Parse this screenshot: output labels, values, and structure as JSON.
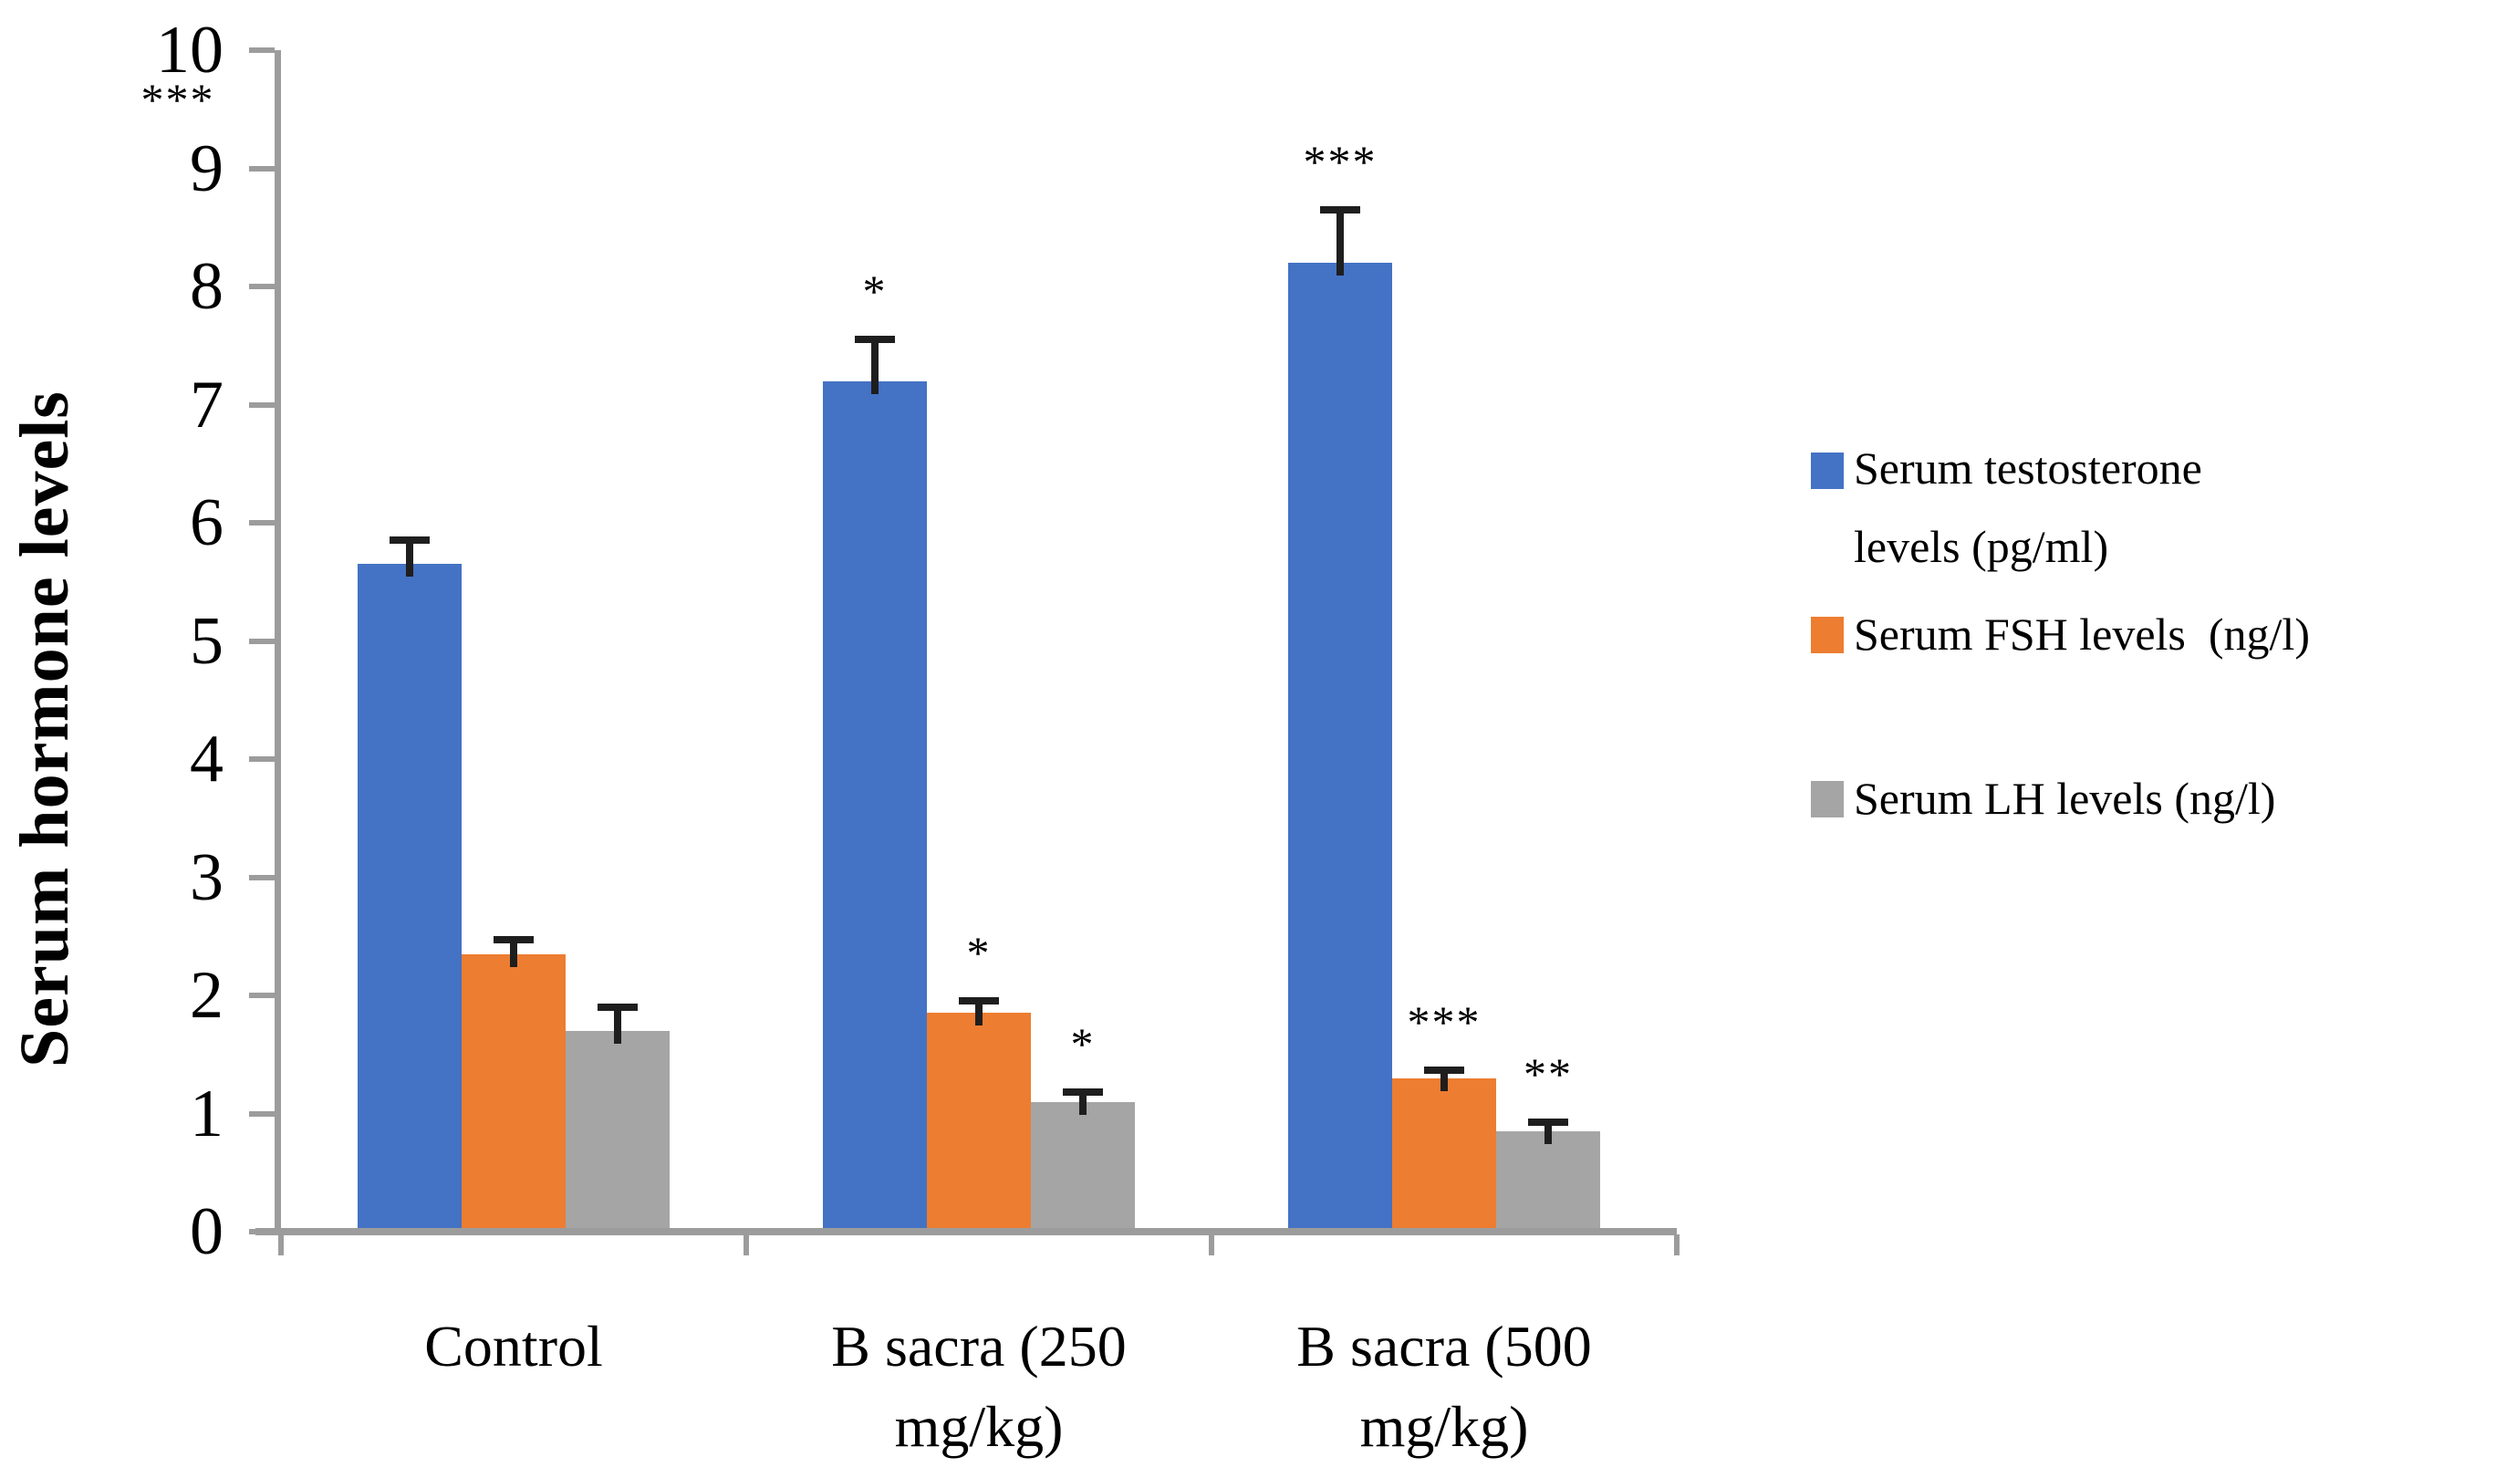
{
  "annotations": {
    "top_left_marks": "***"
  },
  "chart_data": {
    "type": "bar",
    "title": "",
    "xlabel": "",
    "ylabel": "Serum hormone levels",
    "ylim": [
      0,
      10
    ],
    "ytick_step": 1,
    "grid": false,
    "legend_position": "right",
    "categories": [
      "Control",
      "B sacra (250 mg/kg)",
      "B sacra (500 mg/kg)"
    ],
    "category_lines": [
      [
        "Control"
      ],
      [
        "B sacra (250",
        "mg/kg)"
      ],
      [
        "B sacra (500",
        "mg/kg)"
      ]
    ],
    "series": [
      {
        "name": "Serum testosterone levels (pg/ml)",
        "legend_lines": [
          "Serum testosterone",
          "levels (pg/ml)"
        ],
        "color": "#4472C4",
        "values": [
          5.65,
          7.2,
          8.2
        ],
        "errors_plus": [
          0.2,
          0.35,
          0.45
        ],
        "significance": [
          "",
          "*",
          "***"
        ]
      },
      {
        "name": "Serum FSH levels (ng/l)",
        "legend_lines": [
          "Serum FSH levels  (ng/l)"
        ],
        "color": "#ED7D31",
        "values": [
          2.35,
          1.85,
          1.3
        ],
        "errors_plus": [
          0.12,
          0.1,
          0.07
        ],
        "significance": [
          "",
          "*",
          "***"
        ]
      },
      {
        "name": "Serum LH levels (ng/l)",
        "legend_lines": [
          "Serum LH levels (ng/l)"
        ],
        "color": "#A5A5A5",
        "values": [
          1.7,
          1.1,
          0.85
        ],
        "errors_plus": [
          0.2,
          0.08,
          0.08
        ],
        "significance": [
          "",
          "*",
          "**"
        ]
      }
    ],
    "axis_color": "#9C9C9C",
    "error_bar_color": "#1E1E1E",
    "text_color": "#000000"
  }
}
